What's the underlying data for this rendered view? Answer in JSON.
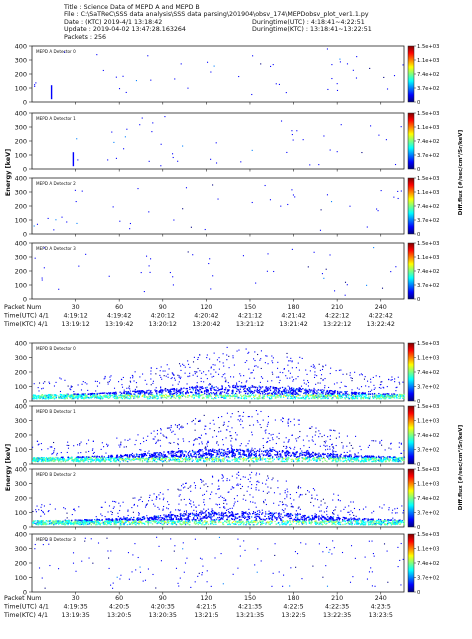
{
  "header": {
    "title": "Title : Science Data of MEPD A and MEPD B",
    "file": "File : C:\\SaTReC\\SSS data analysis\\SSS data parsing\\201904\\obsv_174\\MEPDobsv_plot_ver1.1.py",
    "date": "Date : (KTC) 2019-4/1 13:18:42",
    "update": "Update : 2019-04-02 13:47:28.163264",
    "packets": "Packets : 256",
    "duringtime_utc": "Duringtime(UTC) : 4:18:41~4:22:51",
    "duringtime_ktc": "Duringtime(KTC) : 13:18:41~13:22:51"
  },
  "colorbar_label": "Diff.flux [#/sec/cm²/Sr/keV]",
  "colorbar_ticks": [
    "1.5e+03",
    "1.1e+03",
    "7.4e+02",
    "3.7e+02",
    "0"
  ],
  "colors": {
    "colormap": [
      "#00007f",
      "#0000ff",
      "#007fff",
      "#00ffff",
      "#7fff7f",
      "#ffff00",
      "#ff7f00",
      "#ff0000",
      "#7f0000"
    ]
  },
  "chart_data": [
    {
      "type": "heatmap",
      "group": "MEPD A",
      "ylabel": "Energy [keV]",
      "ylim": [
        0,
        400
      ],
      "yticks": [
        0,
        100,
        200,
        300,
        400
      ],
      "xlim": [
        0,
        256
      ],
      "xticks": [
        30,
        60,
        90,
        120,
        150,
        180,
        210,
        240
      ],
      "colorbar_range": [
        0,
        1500
      ],
      "panels": [
        {
          "label": "MEPD A Detector 0",
          "density": "sparse"
        },
        {
          "label": "MEPD A Detector 1",
          "density": "sparse"
        },
        {
          "label": "MEPD A Detector 2",
          "density": "sparse"
        },
        {
          "label": "MEPD A Detector 3",
          "density": "sparse"
        }
      ],
      "axis_rows": {
        "row_labels": [
          "Packet Num",
          "Time(UTC) 4/1",
          "Time(KTC) 4/1"
        ],
        "packet_num": [
          "30",
          "60",
          "90",
          "120",
          "150",
          "180",
          "210",
          "240"
        ],
        "time_utc": [
          "4:19:12",
          "4:19:42",
          "4:20:12",
          "4:20:42",
          "4:21:12",
          "4:21:42",
          "4:22:12",
          "4:22:42"
        ],
        "time_ktc": [
          "13:19:12",
          "13:19:42",
          "13:20:12",
          "13:20:42",
          "13:21:12",
          "13:21:42",
          "13:22:12",
          "13:22:42"
        ]
      }
    },
    {
      "type": "heatmap",
      "group": "MEPD B",
      "ylabel": "Energy [keV]",
      "ylim": [
        0,
        400
      ],
      "yticks": [
        0,
        100,
        200,
        300,
        400
      ],
      "xlim": [
        0,
        256
      ],
      "xticks": [
        30,
        60,
        90,
        120,
        150,
        180,
        210,
        240
      ],
      "colorbar_range": [
        0,
        1500
      ],
      "panels": [
        {
          "label": "MEPD B Detector 0",
          "density": "dense"
        },
        {
          "label": "MEPD B Detector 1",
          "density": "dense"
        },
        {
          "label": "MEPD B Detector 2",
          "density": "dense"
        },
        {
          "label": "MEPD B Detector 3",
          "density": "sparse"
        }
      ],
      "axis_rows": {
        "row_labels": [
          "Packet Num",
          "Time(UTC) 4/1",
          "Time(KTC) 4/1"
        ],
        "packet_num": [
          "30",
          "60",
          "90",
          "120",
          "150",
          "180",
          "210",
          "240"
        ],
        "time_utc": [
          "4:19:35",
          "4:20:5",
          "4:20:35",
          "4:21:5",
          "4:21:35",
          "4:22:5",
          "4:22:35",
          "4:23:5"
        ],
        "time_ktc": [
          "13:19:35",
          "13:20:5",
          "13:20:35",
          "13:21:5",
          "13:21:35",
          "13:22:5",
          "13:22:35",
          "13:23:5"
        ]
      }
    }
  ]
}
